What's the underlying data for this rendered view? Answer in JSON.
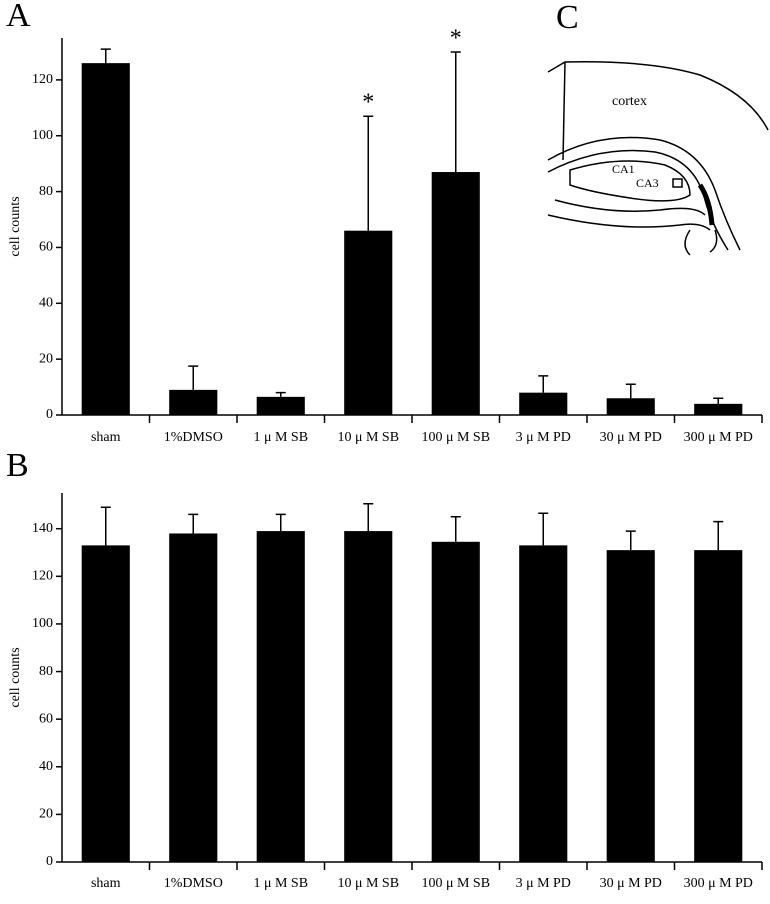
{
  "chart_data": [
    {
      "type": "bar",
      "panel_label": "A",
      "ylabel": "cell counts",
      "categories": [
        "sham",
        "1%DMSO",
        "1 μ M SB",
        "10 μ M SB",
        "100 μ M SB",
        "3 μ M PD",
        "30 μ M PD",
        "300 μ M PD"
      ],
      "values": [
        126,
        9,
        6.5,
        66,
        87,
        8,
        6,
        4
      ],
      "errors": [
        5,
        8.5,
        1.5,
        41,
        43,
        6,
        5,
        2
      ],
      "significance": [
        null,
        null,
        null,
        "*",
        "*",
        null,
        null,
        null
      ],
      "color": "#000000",
      "ylim": [
        0,
        135
      ],
      "yticks": [
        0,
        20,
        40,
        60,
        80,
        100,
        120
      ]
    },
    {
      "type": "bar",
      "panel_label": "B",
      "ylabel": "cell counts",
      "categories": [
        "sham",
        "1%DMSO",
        "1 μ M SB",
        "10 μ M SB",
        "100 μ M SB",
        "3 μ M PD",
        "30 μ M PD",
        "300 μ M PD"
      ],
      "values": [
        133,
        138,
        139,
        139,
        134.5,
        133,
        131,
        131
      ],
      "errors": [
        16,
        8,
        7,
        11.5,
        10.5,
        13.5,
        8,
        12
      ],
      "color": "#000000",
      "ylim": [
        0,
        155
      ],
      "yticks": [
        0,
        20,
        40,
        60,
        80,
        100,
        120,
        140
      ]
    }
  ],
  "diagram": {
    "label": "C",
    "regions": [
      "cortex",
      "CA1",
      "CA3"
    ]
  }
}
